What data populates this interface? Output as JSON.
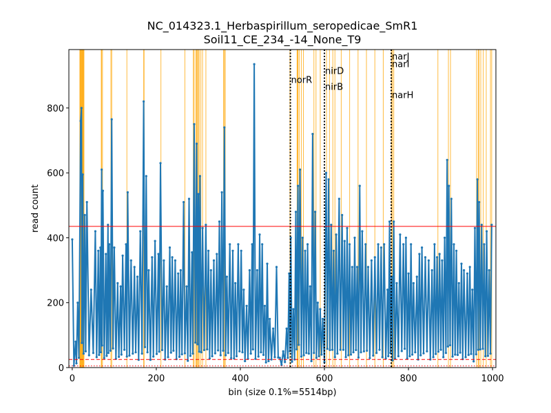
{
  "chart_data": {
    "type": "line",
    "title_line1": "NC_014323.1_Herbaspirillum_seropedicae_SmR1",
    "title_line2": "Soil11_CE_234_-14_None_T9",
    "xlabel": "bin (size 0.1%=5514bp)",
    "ylabel": "read count",
    "xlim": [
      -8,
      1008
    ],
    "ylim": [
      0,
      980
    ],
    "xticks": [
      0,
      200,
      400,
      600,
      800,
      1000
    ],
    "yticks": [
      0,
      200,
      400,
      600,
      800
    ],
    "series_color": "#1f77b4",
    "highlight_color": "#ffa500",
    "threshold_color": "#ff0000",
    "hlines": [
      {
        "y": 435,
        "style": "solid"
      },
      {
        "y": 25,
        "style": "dashed"
      },
      {
        "y": 5,
        "style": "dotted"
      }
    ],
    "gene_markers": [
      {
        "x": 519,
        "labels": [
          {
            "text": "norR",
            "y": 888
          }
        ]
      },
      {
        "x": 600,
        "labels": [
          {
            "text": "nirD",
            "y": 915
          },
          {
            "text": "nirB",
            "y": 866
          }
        ]
      },
      {
        "x": 759,
        "labels": [
          {
            "text": "narJ",
            "y": 960
          },
          {
            "text": "narI",
            "y": 937
          },
          {
            "text": "narH",
            "y": 841
          }
        ]
      }
    ],
    "highlight_bins": [
      18,
      19,
      20,
      21,
      22,
      23,
      24,
      25,
      26,
      27,
      28,
      69,
      70,
      72,
      92,
      94,
      130,
      170,
      171,
      211,
      268,
      288,
      290,
      294,
      296,
      298,
      300,
      302,
      306,
      310,
      318,
      360,
      362,
      364,
      518,
      535,
      536,
      537,
      540,
      545,
      550,
      575,
      580,
      590,
      605,
      612,
      620,
      625,
      640,
      660,
      680,
      700,
      720,
      740,
      760,
      762,
      765,
      870,
      895,
      900,
      962,
      966,
      968,
      972,
      978,
      985,
      995,
      998
    ],
    "peaks": [
      {
        "x": 0,
        "y": 395
      },
      {
        "x": 8,
        "y": 80
      },
      {
        "x": 13,
        "y": 200
      },
      {
        "x": 20,
        "y": 760
      },
      {
        "x": 22,
        "y": 800
      },
      {
        "x": 25,
        "y": 595
      },
      {
        "x": 30,
        "y": 470
      },
      {
        "x": 35,
        "y": 510
      },
      {
        "x": 45,
        "y": 240
      },
      {
        "x": 55,
        "y": 420
      },
      {
        "x": 62,
        "y": 360
      },
      {
        "x": 67,
        "y": 370
      },
      {
        "x": 70,
        "y": 610
      },
      {
        "x": 73,
        "y": 545
      },
      {
        "x": 80,
        "y": 350
      },
      {
        "x": 85,
        "y": 440
      },
      {
        "x": 88,
        "y": 380
      },
      {
        "x": 94,
        "y": 765
      },
      {
        "x": 100,
        "y": 370
      },
      {
        "x": 108,
        "y": 260
      },
      {
        "x": 115,
        "y": 250
      },
      {
        "x": 120,
        "y": 345
      },
      {
        "x": 128,
        "y": 380
      },
      {
        "x": 132,
        "y": 540
      },
      {
        "x": 140,
        "y": 330
      },
      {
        "x": 148,
        "y": 310
      },
      {
        "x": 155,
        "y": 280
      },
      {
        "x": 162,
        "y": 420
      },
      {
        "x": 170,
        "y": 820
      },
      {
        "x": 176,
        "y": 590
      },
      {
        "x": 182,
        "y": 300
      },
      {
        "x": 190,
        "y": 340
      },
      {
        "x": 197,
        "y": 390
      },
      {
        "x": 205,
        "y": 350
      },
      {
        "x": 210,
        "y": 630
      },
      {
        "x": 218,
        "y": 330
      },
      {
        "x": 225,
        "y": 250
      },
      {
        "x": 232,
        "y": 370
      },
      {
        "x": 238,
        "y": 340
      },
      {
        "x": 245,
        "y": 330
      },
      {
        "x": 252,
        "y": 290
      },
      {
        "x": 258,
        "y": 300
      },
      {
        "x": 265,
        "y": 510
      },
      {
        "x": 272,
        "y": 250
      },
      {
        "x": 278,
        "y": 520
      },
      {
        "x": 285,
        "y": 355
      },
      {
        "x": 290,
        "y": 750
      },
      {
        "x": 296,
        "y": 690
      },
      {
        "x": 300,
        "y": 535
      },
      {
        "x": 304,
        "y": 590
      },
      {
        "x": 310,
        "y": 430
      },
      {
        "x": 318,
        "y": 440
      },
      {
        "x": 324,
        "y": 360
      },
      {
        "x": 330,
        "y": 300
      },
      {
        "x": 337,
        "y": 330
      },
      {
        "x": 344,
        "y": 350
      },
      {
        "x": 350,
        "y": 450
      },
      {
        "x": 356,
        "y": 540
      },
      {
        "x": 362,
        "y": 740
      },
      {
        "x": 368,
        "y": 280
      },
      {
        "x": 375,
        "y": 380
      },
      {
        "x": 382,
        "y": 360
      },
      {
        "x": 388,
        "y": 260
      },
      {
        "x": 395,
        "y": 380
      },
      {
        "x": 402,
        "y": 360
      },
      {
        "x": 408,
        "y": 240
      },
      {
        "x": 415,
        "y": 190
      },
      {
        "x": 422,
        "y": 300
      },
      {
        "x": 428,
        "y": 380
      },
      {
        "x": 433,
        "y": 935
      },
      {
        "x": 440,
        "y": 300
      },
      {
        "x": 446,
        "y": 410
      },
      {
        "x": 452,
        "y": 380
      },
      {
        "x": 458,
        "y": 190
      },
      {
        "x": 464,
        "y": 320
      },
      {
        "x": 470,
        "y": 150
      },
      {
        "x": 478,
        "y": 120
      },
      {
        "x": 486,
        "y": 310
      },
      {
        "x": 494,
        "y": 30
      },
      {
        "x": 502,
        "y": 50
      },
      {
        "x": 510,
        "y": 120
      },
      {
        "x": 516,
        "y": 290
      },
      {
        "x": 520,
        "y": 400
      },
      {
        "x": 526,
        "y": 180
      },
      {
        "x": 532,
        "y": 480
      },
      {
        "x": 537,
        "y": 560
      },
      {
        "x": 542,
        "y": 610
      },
      {
        "x": 548,
        "y": 400
      },
      {
        "x": 554,
        "y": 360
      },
      {
        "x": 560,
        "y": 380
      },
      {
        "x": 566,
        "y": 250
      },
      {
        "x": 572,
        "y": 720
      },
      {
        "x": 578,
        "y": 480
      },
      {
        "x": 584,
        "y": 200
      },
      {
        "x": 590,
        "y": 180
      },
      {
        "x": 596,
        "y": 150
      },
      {
        "x": 604,
        "y": 600
      },
      {
        "x": 610,
        "y": 580
      },
      {
        "x": 616,
        "y": 440
      },
      {
        "x": 622,
        "y": 360
      },
      {
        "x": 628,
        "y": 410
      },
      {
        "x": 635,
        "y": 520
      },
      {
        "x": 642,
        "y": 470
      },
      {
        "x": 648,
        "y": 390
      },
      {
        "x": 654,
        "y": 430
      },
      {
        "x": 660,
        "y": 380
      },
      {
        "x": 666,
        "y": 310
      },
      {
        "x": 672,
        "y": 400
      },
      {
        "x": 678,
        "y": 310
      },
      {
        "x": 684,
        "y": 560
      },
      {
        "x": 690,
        "y": 420
      },
      {
        "x": 698,
        "y": 380
      },
      {
        "x": 704,
        "y": 310
      },
      {
        "x": 712,
        "y": 330
      },
      {
        "x": 720,
        "y": 340
      },
      {
        "x": 728,
        "y": 380
      },
      {
        "x": 735,
        "y": 370
      },
      {
        "x": 742,
        "y": 380
      },
      {
        "x": 750,
        "y": 240
      },
      {
        "x": 755,
        "y": 450
      },
      {
        "x": 760,
        "y": 280
      },
      {
        "x": 765,
        "y": 450
      },
      {
        "x": 772,
        "y": 260
      },
      {
        "x": 780,
        "y": 410
      },
      {
        "x": 788,
        "y": 380
      },
      {
        "x": 794,
        "y": 400
      },
      {
        "x": 800,
        "y": 290
      },
      {
        "x": 806,
        "y": 380
      },
      {
        "x": 812,
        "y": 260
      },
      {
        "x": 820,
        "y": 280
      },
      {
        "x": 826,
        "y": 350
      },
      {
        "x": 832,
        "y": 370
      },
      {
        "x": 840,
        "y": 340
      },
      {
        "x": 848,
        "y": 330
      },
      {
        "x": 856,
        "y": 300
      },
      {
        "x": 862,
        "y": 380
      },
      {
        "x": 868,
        "y": 340
      },
      {
        "x": 874,
        "y": 350
      },
      {
        "x": 880,
        "y": 330
      },
      {
        "x": 886,
        "y": 400
      },
      {
        "x": 892,
        "y": 640
      },
      {
        "x": 896,
        "y": 560
      },
      {
        "x": 902,
        "y": 520
      },
      {
        "x": 908,
        "y": 380
      },
      {
        "x": 914,
        "y": 360
      },
      {
        "x": 920,
        "y": 260
      },
      {
        "x": 926,
        "y": 320
      },
      {
        "x": 932,
        "y": 300
      },
      {
        "x": 940,
        "y": 290
      },
      {
        "x": 946,
        "y": 310
      },
      {
        "x": 952,
        "y": 240
      },
      {
        "x": 958,
        "y": 430
      },
      {
        "x": 964,
        "y": 580
      },
      {
        "x": 968,
        "y": 510
      },
      {
        "x": 974,
        "y": 440
      },
      {
        "x": 980,
        "y": 380
      },
      {
        "x": 986,
        "y": 420
      },
      {
        "x": 992,
        "y": 300
      },
      {
        "x": 998,
        "y": 440
      }
    ]
  }
}
